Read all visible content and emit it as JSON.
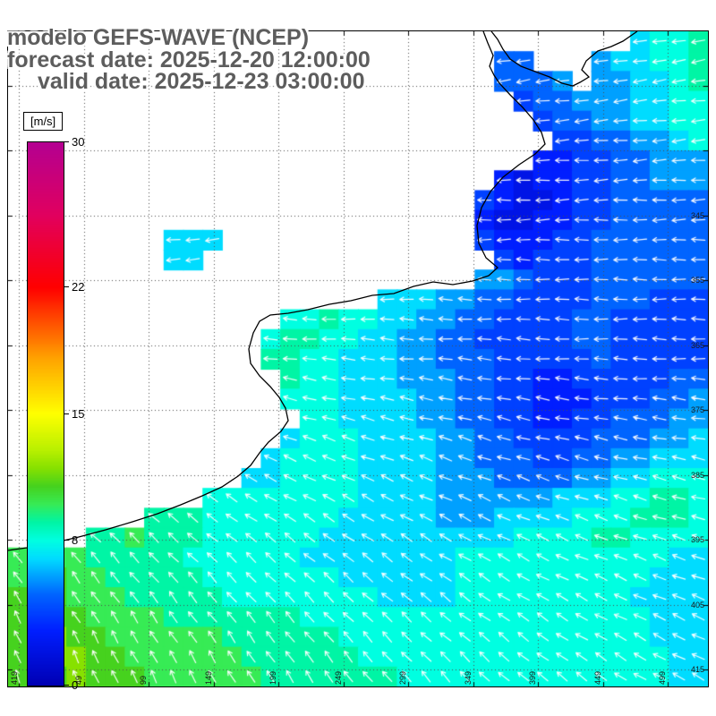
{
  "header": {
    "line1": "modelo GEFS-WAVE (NCEP)",
    "line2": "forecast date: 2025-12-20 12:00:00",
    "line3": "valid date: 2025-12-23 03:00:00"
  },
  "colorbar": {
    "units_label": "[m/s]",
    "min": 0,
    "max": 30,
    "tick_values": [
      30,
      22,
      15,
      8,
      0
    ]
  },
  "chart_data": {
    "type": "heatmap",
    "title": "modelo GEFS-WAVE (NCEP)",
    "forecast_date": "2025-12-20 12:00:00",
    "valid_date": "2025-12-23 03:00:00",
    "units": "m/s",
    "colorbar": {
      "min": 0,
      "max": 30,
      "ticks": [
        0,
        8,
        15,
        22,
        30
      ]
    },
    "palette_stops": [
      [
        0,
        "#0000b4"
      ],
      [
        3,
        "#001eff"
      ],
      [
        5,
        "#0064ff"
      ],
      [
        6,
        "#00a0ff"
      ],
      [
        7,
        "#00dcff"
      ],
      [
        8,
        "#00ffe1"
      ],
      [
        9,
        "#00f5a5"
      ],
      [
        10,
        "#37eb55"
      ],
      [
        11,
        "#46d21e"
      ],
      [
        12,
        "#87e100"
      ],
      [
        13,
        "#b9f000"
      ],
      [
        15,
        "#ffff00"
      ],
      [
        18,
        "#ffa500"
      ],
      [
        22,
        "#ff0000"
      ],
      [
        26,
        "#e1005f"
      ],
      [
        30,
        "#b40091"
      ]
    ],
    "right_axis_labels": [
      "345",
      "355",
      "365",
      "375",
      "385",
      "395",
      "405",
      "415"
    ],
    "bottom_axis_labels": [
      "49",
      "99",
      "149",
      "199",
      "249",
      "299",
      "349",
      "399",
      "449",
      "499"
    ],
    "left_edge_label": "419",
    "grid": {
      "cols": 36,
      "rows": 33,
      "cell_encoding": "'.'=land/no data; hex char = wave wind speed in m/s (1-9, a=10, b=11, c=12)",
      "rows_data": [
        "................................7889",
        ".........................55...677889",
        ".........................5556.667789",
        "..........................4556667788",
        "...........................455667788",
        "............................44556678",
        "...........................334455666",
        ".........................32334455666",
        "........................432234455555",
        "........................322334455555",
        "........777.............433344555555",
        "........77...............43444555555",
        "........................665444555555",
        "...................77766554444555444",
        "..............8898877665544445544444",
        ".............89988776655444445544444",
        ".............99887776655544444544444",
        "..............9887776665544334444455",
        "..............8887777665544333444556",
        "...............887777665544334455566",
        "..............7888777766554444555667",
        ".............78888777766555445566777",
        "............778888777766655556677888",
        "..........88888888777766666677788998",
        ".......99988888887777766677778889998",
        "....99a99988888877777777778888998888",
        "aaaa99999888888777777778888888888877",
        "aabaa9999988888887777778888888888777",
        "bbbaaa999998888888877778888888887777",
        "bbbbaaaa99999998888888888888888887777",
        "bbcbbaaaaaa9999998888888888888888777",
        "bbccbbaaaaaa999999888888888888888877",
        "bbbcbbbaaaaaa99999998888888888888877"
      ]
    },
    "arrow_angles_deg": [
      [
        200,
        200,
        195,
        195,
        190,
        190,
        190
      ],
      [
        195,
        195,
        190,
        190,
        185,
        185,
        185
      ],
      [
        185,
        185,
        185,
        180,
        180,
        180,
        180
      ],
      [
        170,
        170,
        172,
        175,
        175,
        178,
        178
      ],
      [
        150,
        152,
        155,
        158,
        160,
        165,
        168
      ],
      [
        125,
        130,
        135,
        140,
        148,
        155,
        160
      ],
      [
        110,
        115,
        120,
        128,
        135,
        145,
        152
      ]
    ]
  }
}
